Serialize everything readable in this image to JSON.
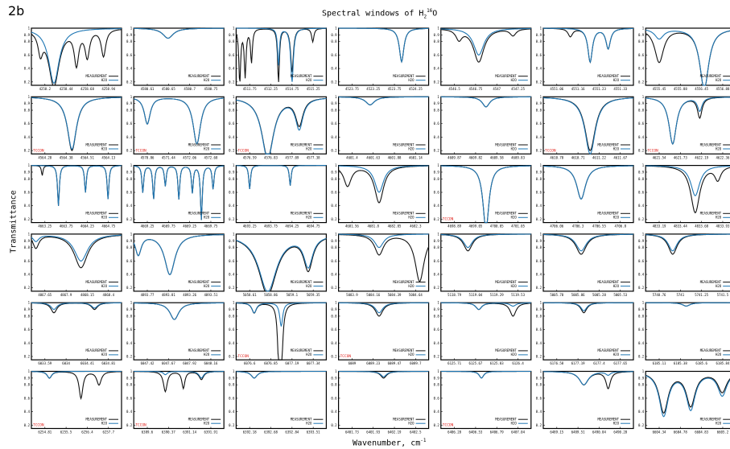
{
  "figure": {
    "panel_label": "2b",
    "title_prefix": "Spectral windows of H",
    "title_sub": "2",
    "title_sup": "16",
    "title_suffix": "O",
    "ylabel": "Transmittance",
    "xlabel_text": "Wavenumber, cm",
    "xlabel_sup": "-1"
  },
  "colors": {
    "measurement": "#111111",
    "model": "#1f77b4",
    "tccon": "#e0201b"
  },
  "legend": {
    "measurement": "MEASUREMENT",
    "model": "H2O"
  },
  "tccon_label": "TCCON",
  "chart_data": {
    "type": "line",
    "grid": "6 rows x 7 columns of small panels",
    "y_ticks": [
      "1",
      "0.9",
      "0.8",
      "0.6",
      "0.4",
      "0.2"
    ],
    "ylim": [
      0.15,
      1.0
    ],
    "series_names": [
      "MEASUREMENT",
      "H2O"
    ],
    "panels": [
      {
        "ticks": [
          "4258.2",
          "4258.44",
          "4258.68",
          "4258.94"
        ],
        "lines": [
          {
            "c": 0.25,
            "w": 0.07,
            "dm": 0.85,
            "dh": 0.82
          },
          {
            "c": 0.1,
            "w": 0.03,
            "dm": 0.3,
            "dh": 0
          },
          {
            "c": 0.5,
            "w": 0.03,
            "dm": 0.5,
            "dh": 0
          },
          {
            "c": 0.62,
            "w": 0.03,
            "dm": 0.4,
            "dh": 0
          },
          {
            "c": 0.8,
            "w": 0.03,
            "dm": 0.4,
            "dh": 0
          }
        ]
      },
      {
        "ticks": [
          "4580.61",
          "4580.65",
          "4580.7",
          "4580.75"
        ],
        "lines": [
          {
            "c": 0.38,
            "w": 0.07,
            "dm": 0.15,
            "dh": 0.15
          }
        ]
      },
      {
        "ticks": [
          "4511.75",
          "4512.25",
          "4514.75",
          "4515.25"
        ],
        "lines": [
          {
            "c": 0.04,
            "w": 0.012,
            "dm": 0.8,
            "dh": 0
          },
          {
            "c": 0.1,
            "w": 0.012,
            "dm": 0.7,
            "dh": 0
          },
          {
            "c": 0.17,
            "w": 0.012,
            "dm": 0.5,
            "dh": 0
          },
          {
            "c": 0.47,
            "w": 0.012,
            "dm": 0.8,
            "dh": 0.55
          },
          {
            "c": 0.62,
            "w": 0.018,
            "dm": 0.65,
            "dh": 0.8
          },
          {
            "c": 0.85,
            "w": 0.015,
            "dm": 0.2,
            "dh": 0
          }
        ]
      },
      {
        "ticks": [
          "4523.75",
          "4523.25",
          "4523.75",
          "4524.25"
        ],
        "lines": [
          {
            "c": 0.7,
            "w": 0.03,
            "dm": 0.5,
            "dh": 0.5
          }
        ]
      },
      {
        "ticks": [
          "4546.5",
          "4546.75",
          "4547",
          "4547.25"
        ],
        "lines": [
          {
            "c": 0.42,
            "w": 0.07,
            "dm": 0.5,
            "dh": 0.4
          },
          {
            "c": 0.2,
            "w": 0.04,
            "dm": 0.15,
            "dh": 0
          },
          {
            "c": 0.8,
            "w": 0.04,
            "dm": 0.1,
            "dh": 0
          }
        ]
      },
      {
        "ticks": [
          "4551.06",
          "4551.16",
          "4551.23",
          "4551.33"
        ],
        "lines": [
          {
            "c": 0.52,
            "w": 0.03,
            "dm": 0.5,
            "dh": 0.5
          },
          {
            "c": 0.72,
            "w": 0.03,
            "dm": 0.3,
            "dh": 0.3
          },
          {
            "c": 0.3,
            "w": 0.03,
            "dm": 0.12,
            "dh": 0
          }
        ]
      },
      {
        "ticks": [
          "4555.45",
          "4555.88",
          "4556.45",
          "4556.88"
        ],
        "lines": [
          {
            "c": 0.65,
            "w": 0.06,
            "dm": 0.9,
            "dh": 0.9
          },
          {
            "c": 0.15,
            "w": 0.06,
            "dm": 0.5,
            "dh": 0.15
          }
        ]
      },
      {
        "ticks": [
          "4564.28",
          "4564.38",
          "4564.51",
          "4564.13"
        ],
        "lines": [
          {
            "c": 0.45,
            "w": 0.06,
            "dm": 0.8,
            "dh": 0.78
          }
        ],
        "tccon": true
      },
      {
        "ticks": [
          "4570.86",
          "4571.44",
          "4572.06",
          "4572.68"
        ],
        "lines": [
          {
            "c": 0.15,
            "w": 0.04,
            "dm": 0.4,
            "dh": 0.4
          },
          {
            "c": 0.7,
            "w": 0.05,
            "dm": 0.7,
            "dh": 0.7
          }
        ],
        "tccon": true
      },
      {
        "ticks": [
          "4576.59",
          "4576.83",
          "4577.09",
          "4577.38"
        ],
        "lines": [
          {
            "c": 0.35,
            "w": 0.08,
            "dm": 0.9,
            "dh": 0.92
          },
          {
            "c": 0.7,
            "w": 0.05,
            "dm": 0.4,
            "dh": 0.45
          }
        ],
        "tccon": true
      },
      {
        "ticks": [
          "4601.4",
          "4601.63",
          "4601.88",
          "4601.14"
        ],
        "lines": [
          {
            "c": 0.35,
            "w": 0.06,
            "dm": 0.12,
            "dh": 0.12
          }
        ]
      },
      {
        "ticks": [
          "4609.87",
          "4609.82",
          "4609.58",
          "4609.83"
        ],
        "lines": [
          {
            "c": 0.5,
            "w": 0.05,
            "dm": 0.15,
            "dh": 0.15
          }
        ]
      },
      {
        "ticks": [
          "4610.78",
          "4610.71",
          "4611.22",
          "4611.67"
        ],
        "lines": [
          {
            "c": 0.52,
            "w": 0.07,
            "dm": 0.8,
            "dh": 0.85
          }
        ],
        "tccon": true
      },
      {
        "ticks": [
          "4621.54",
          "4621.73",
          "4622.19",
          "4622.36"
        ],
        "lines": [
          {
            "c": 0.3,
            "w": 0.05,
            "dm": 0.7,
            "dh": 0.7
          },
          {
            "c": 0.6,
            "w": 0.03,
            "dm": 0.3,
            "dh": 0.2
          }
        ],
        "tccon": true
      },
      {
        "ticks": [
          "4663.25",
          "4663.75",
          "4664.25",
          "4664.75"
        ],
        "lines": [
          {
            "c": 0.3,
            "w": 0.012,
            "dm": 0.6,
            "dh": 0.6
          },
          {
            "c": 0.6,
            "w": 0.012,
            "dm": 0.4,
            "dh": 0.4
          },
          {
            "c": 0.85,
            "w": 0.012,
            "dm": 0.5,
            "dh": 0.5
          },
          {
            "c": 0.12,
            "w": 0.01,
            "dm": 0.15,
            "dh": 0
          }
        ]
      },
      {
        "ticks": [
          "4669.25",
          "4669.75",
          "4669.25",
          "4669.75"
        ],
        "lines": [
          {
            "c": 0.1,
            "w": 0.012,
            "dm": 0.4,
            "dh": 0.4
          },
          {
            "c": 0.22,
            "w": 0.012,
            "dm": 0.5,
            "dh": 0.5
          },
          {
            "c": 0.35,
            "w": 0.012,
            "dm": 0.3,
            "dh": 0.3
          },
          {
            "c": 0.5,
            "w": 0.012,
            "dm": 0.5,
            "dh": 0.5
          },
          {
            "c": 0.65,
            "w": 0.012,
            "dm": 0.4,
            "dh": 0.4
          },
          {
            "c": 0.75,
            "w": 0.012,
            "dm": 0.8,
            "dh": 0.8
          },
          {
            "c": 0.88,
            "w": 0.012,
            "dm": 0.35,
            "dh": 0.35
          }
        ]
      },
      {
        "ticks": [
          "4693.25",
          "4693.75",
          "4694.25",
          "4694.75"
        ],
        "lines": [
          {
            "c": 0.15,
            "w": 0.012,
            "dm": 0.35,
            "dh": 0.35
          },
          {
            "c": 0.6,
            "w": 0.012,
            "dm": 0.3,
            "dh": 0.3
          }
        ]
      },
      {
        "ticks": [
          "4681.56",
          "4681.8",
          "4682.05",
          "4682.3"
        ],
        "lines": [
          {
            "c": 0.45,
            "w": 0.06,
            "dm": 0.55,
            "dh": 0.4
          },
          {
            "c": 0.1,
            "w": 0.05,
            "dm": 0.3,
            "dh": 0
          }
        ]
      },
      {
        "ticks": [
          "4698.89",
          "4699.05",
          "4700.05",
          "4701.05"
        ],
        "lines": [
          {
            "c": 0.5,
            "w": 0.04,
            "dm": 0.95,
            "dh": 0.95
          }
        ],
        "tccon": true
      },
      {
        "ticks": [
          "4706.06",
          "4706.3",
          "4706.55",
          "4706.8"
        ],
        "lines": [
          {
            "c": 0.42,
            "w": 0.06,
            "dm": 0.5,
            "dh": 0.5
          }
        ]
      },
      {
        "ticks": [
          "4833.19",
          "4833.44",
          "4833.68",
          "4833.93"
        ],
        "lines": [
          {
            "c": 0.55,
            "w": 0.06,
            "dm": 0.7,
            "dh": 0.45
          },
          {
            "c": 0.8,
            "w": 0.04,
            "dm": 0.2,
            "dh": 0
          }
        ]
      },
      {
        "ticks": [
          "4867.65",
          "4867.9",
          "4868.15",
          "4868.4"
        ],
        "lines": [
          {
            "c": 0.55,
            "w": 0.09,
            "dm": 0.5,
            "dh": 0.4
          },
          {
            "c": 0.05,
            "w": 0.04,
            "dm": 0.2,
            "dh": 0.1
          }
        ]
      },
      {
        "ticks": [
          "4893.77",
          "4893.81",
          "4893.26",
          "4893.51"
        ],
        "lines": [
          {
            "c": 0.4,
            "w": 0.07,
            "dm": 0.6,
            "dh": 0.6
          },
          {
            "c": 0.05,
            "w": 0.04,
            "dm": 0.3,
            "dh": 0.3
          }
        ]
      },
      {
        "ticks": [
          "5058.61",
          "5058.86",
          "5059.1",
          "5059.35"
        ],
        "lines": [
          {
            "c": 0.35,
            "w": 0.12,
            "dm": 0.9,
            "dh": 0.85
          },
          {
            "c": 0.8,
            "w": 0.06,
            "dm": 0.5,
            "dh": 0.45
          }
        ]
      },
      {
        "ticks": [
          "5083.9",
          "5084.16",
          "5084.39",
          "5084.64"
        ],
        "lines": [
          {
            "c": 0.45,
            "w": 0.06,
            "dm": 0.3,
            "dh": 0.2
          },
          {
            "c": 0.9,
            "w": 0.06,
            "dm": 0.7,
            "dh": 0
          }
        ]
      },
      {
        "ticks": [
          "5118.79",
          "5119.04",
          "5119.29",
          "5119.53"
        ],
        "lines": [
          {
            "c": 0.3,
            "w": 0.06,
            "dm": 0.25,
            "dh": 0.2
          }
        ]
      },
      {
        "ticks": [
          "5005.78",
          "5005.86",
          "5005.28",
          "5005.53"
        ],
        "lines": [
          {
            "c": 0.42,
            "w": 0.07,
            "dm": 0.3,
            "dh": 0.25
          }
        ]
      },
      {
        "ticks": [
          "5748.76",
          "5741",
          "5741.25",
          "5741.5"
        ],
        "lines": [
          {
            "c": 0.3,
            "w": 0.06,
            "dm": 0.3,
            "dh": 0.25
          }
        ]
      },
      {
        "ticks": [
          "6033.59",
          "6034",
          "6034.41",
          "6034.81"
        ],
        "lines": [
          {
            "c": 0.25,
            "w": 0.04,
            "dm": 0.15,
            "dh": 0.1
          },
          {
            "c": 0.7,
            "w": 0.04,
            "dm": 0.1,
            "dh": 0.08
          }
        ]
      },
      {
        "ticks": [
          "6047.42",
          "6047.67",
          "6047.92",
          "6048.16"
        ],
        "lines": [
          {
            "c": 0.45,
            "w": 0.06,
            "dm": 0.25,
            "dh": 0.25
          }
        ]
      },
      {
        "ticks": [
          "6076.6",
          "6076.85",
          "6077.19",
          "6077.34"
        ],
        "lines": [
          {
            "c": 0.5,
            "w": 0.02,
            "dm": 0.95,
            "dh": 0.35
          },
          {
            "c": 0.47,
            "w": 0.015,
            "dm": 0.6,
            "dh": 0
          },
          {
            "c": 0.2,
            "w": 0.03,
            "dm": 0.15,
            "dh": 0.15
          }
        ],
        "tccon": true
      },
      {
        "ticks": [
          "6089",
          "6089.23",
          "6089.47",
          "6089.7"
        ],
        "lines": [
          {
            "c": 0.45,
            "w": 0.05,
            "dm": 0.2,
            "dh": 0.15
          }
        ],
        "tccon": true
      },
      {
        "ticks": [
          "6125.71",
          "6125.67",
          "6125.83",
          "6126.4"
        ],
        "lines": [
          {
            "c": 0.42,
            "w": 0.04,
            "dm": 0.1,
            "dh": 0.1
          },
          {
            "c": 0.8,
            "w": 0.04,
            "dm": 0.2,
            "dh": 0.05
          }
        ]
      },
      {
        "ticks": [
          "6176.58",
          "6177.19",
          "6177.4",
          "6177.65"
        ],
        "lines": [
          {
            "c": 0.45,
            "w": 0.04,
            "dm": 0.15,
            "dh": 0.12
          }
        ]
      },
      {
        "ticks": [
          "6185.11",
          "6185.38",
          "6185.6",
          "6185.84"
        ],
        "lines": [
          {
            "c": 0.45,
            "w": 0.05,
            "dm": 0.05,
            "dh": 0.05
          }
        ]
      },
      {
        "ticks": [
          "6254.81",
          "6255.5",
          "6256.4",
          "6257.7"
        ],
        "lines": [
          {
            "c": 0.55,
            "w": 0.025,
            "dm": 0.4,
            "dh": 0
          },
          {
            "c": 0.2,
            "w": 0.03,
            "dm": 0.1,
            "dh": 0.1
          },
          {
            "c": 0.75,
            "w": 0.03,
            "dm": 0.2,
            "dh": 0
          }
        ],
        "tccon": true
      },
      {
        "ticks": [
          "6389.6",
          "6390.37",
          "6391.14",
          "6391.91"
        ],
        "lines": [
          {
            "c": 0.35,
            "w": 0.025,
            "dm": 0.3,
            "dh": 0.05
          },
          {
            "c": 0.55,
            "w": 0.02,
            "dm": 0.25,
            "dh": 0
          },
          {
            "c": 0.75,
            "w": 0.03,
            "dm": 0.12,
            "dh": 0.1
          }
        ],
        "tccon": true
      },
      {
        "ticks": [
          "6392.18",
          "6392.68",
          "6392.84",
          "6393.51"
        ],
        "lines": [
          {
            "c": 0.2,
            "w": 0.04,
            "dm": 0.1,
            "dh": 0.1
          }
        ]
      },
      {
        "ticks": [
          "6401.73",
          "6401.93",
          "6402.19",
          "6402.5"
        ],
        "lines": [
          {
            "c": 0.5,
            "w": 0.04,
            "dm": 0.1,
            "dh": 0.08
          }
        ]
      },
      {
        "ticks": [
          "6406.28",
          "6406.53",
          "6406.79",
          "6407.04"
        ],
        "lines": [
          {
            "c": 0.45,
            "w": 0.03,
            "dm": 0.1,
            "dh": 0.1
          }
        ],
        "tccon": true
      },
      {
        "ticks": [
          "6489.15",
          "6489.51",
          "6490.04",
          "6490.28"
        ],
        "lines": [
          {
            "c": 0.45,
            "w": 0.06,
            "dm": 0.2,
            "dh": 0.2
          },
          {
            "c": 0.72,
            "w": 0.03,
            "dm": 0.25,
            "dh": 0.05
          }
        ]
      },
      {
        "ticks": [
          "6604.34",
          "6604.78",
          "6604.83",
          "6605.2"
        ],
        "lines": [
          {
            "c": 0.2,
            "w": 0.06,
            "dm": 0.6,
            "dh": 0.65
          },
          {
            "c": 0.5,
            "w": 0.06,
            "dm": 0.5,
            "dh": 0.55
          },
          {
            "c": 0.85,
            "w": 0.06,
            "dm": 0.3,
            "dh": 0.35
          }
        ],
        "partial_left": true
      }
    ]
  }
}
